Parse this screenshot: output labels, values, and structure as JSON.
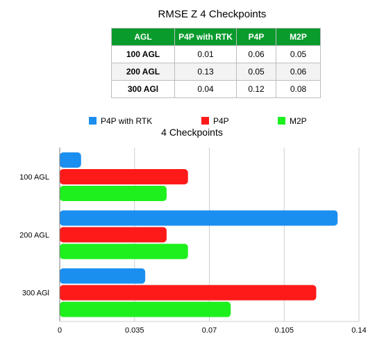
{
  "table": {
    "title": "RMSE Z 4 Checkpoints",
    "headers": [
      "AGL",
      "P4P with RTK",
      "P4P",
      "M2P"
    ],
    "rows": [
      [
        "100 AGL",
        "0.01",
        "0.06",
        "0.05"
      ],
      [
        "200 AGL",
        "0.13",
        "0.05",
        "0.06"
      ],
      [
        "300 AGl",
        "0.04",
        "0.12",
        "0.08"
      ]
    ],
    "header_color": "#0a9b2d"
  },
  "chart_data": {
    "type": "bar",
    "orientation": "horizontal",
    "title": "4 Checkpoints",
    "categories": [
      "100 AGL",
      "200 AGL",
      "300 AGl"
    ],
    "series": [
      {
        "name": "P4P with RTK",
        "color": "#1b8ff0",
        "values": [
          0.01,
          0.13,
          0.04
        ]
      },
      {
        "name": "P4P",
        "color": "#ff1a1a",
        "values": [
          0.06,
          0.05,
          0.12
        ]
      },
      {
        "name": "M2P",
        "color": "#1ef01e",
        "values": [
          0.05,
          0.06,
          0.08
        ]
      }
    ],
    "xlim": [
      0,
      0.14
    ],
    "xticks": [
      "0",
      "0.035",
      "0.07",
      "0.105",
      "0.14"
    ],
    "grid": true,
    "legend_position": "top"
  }
}
